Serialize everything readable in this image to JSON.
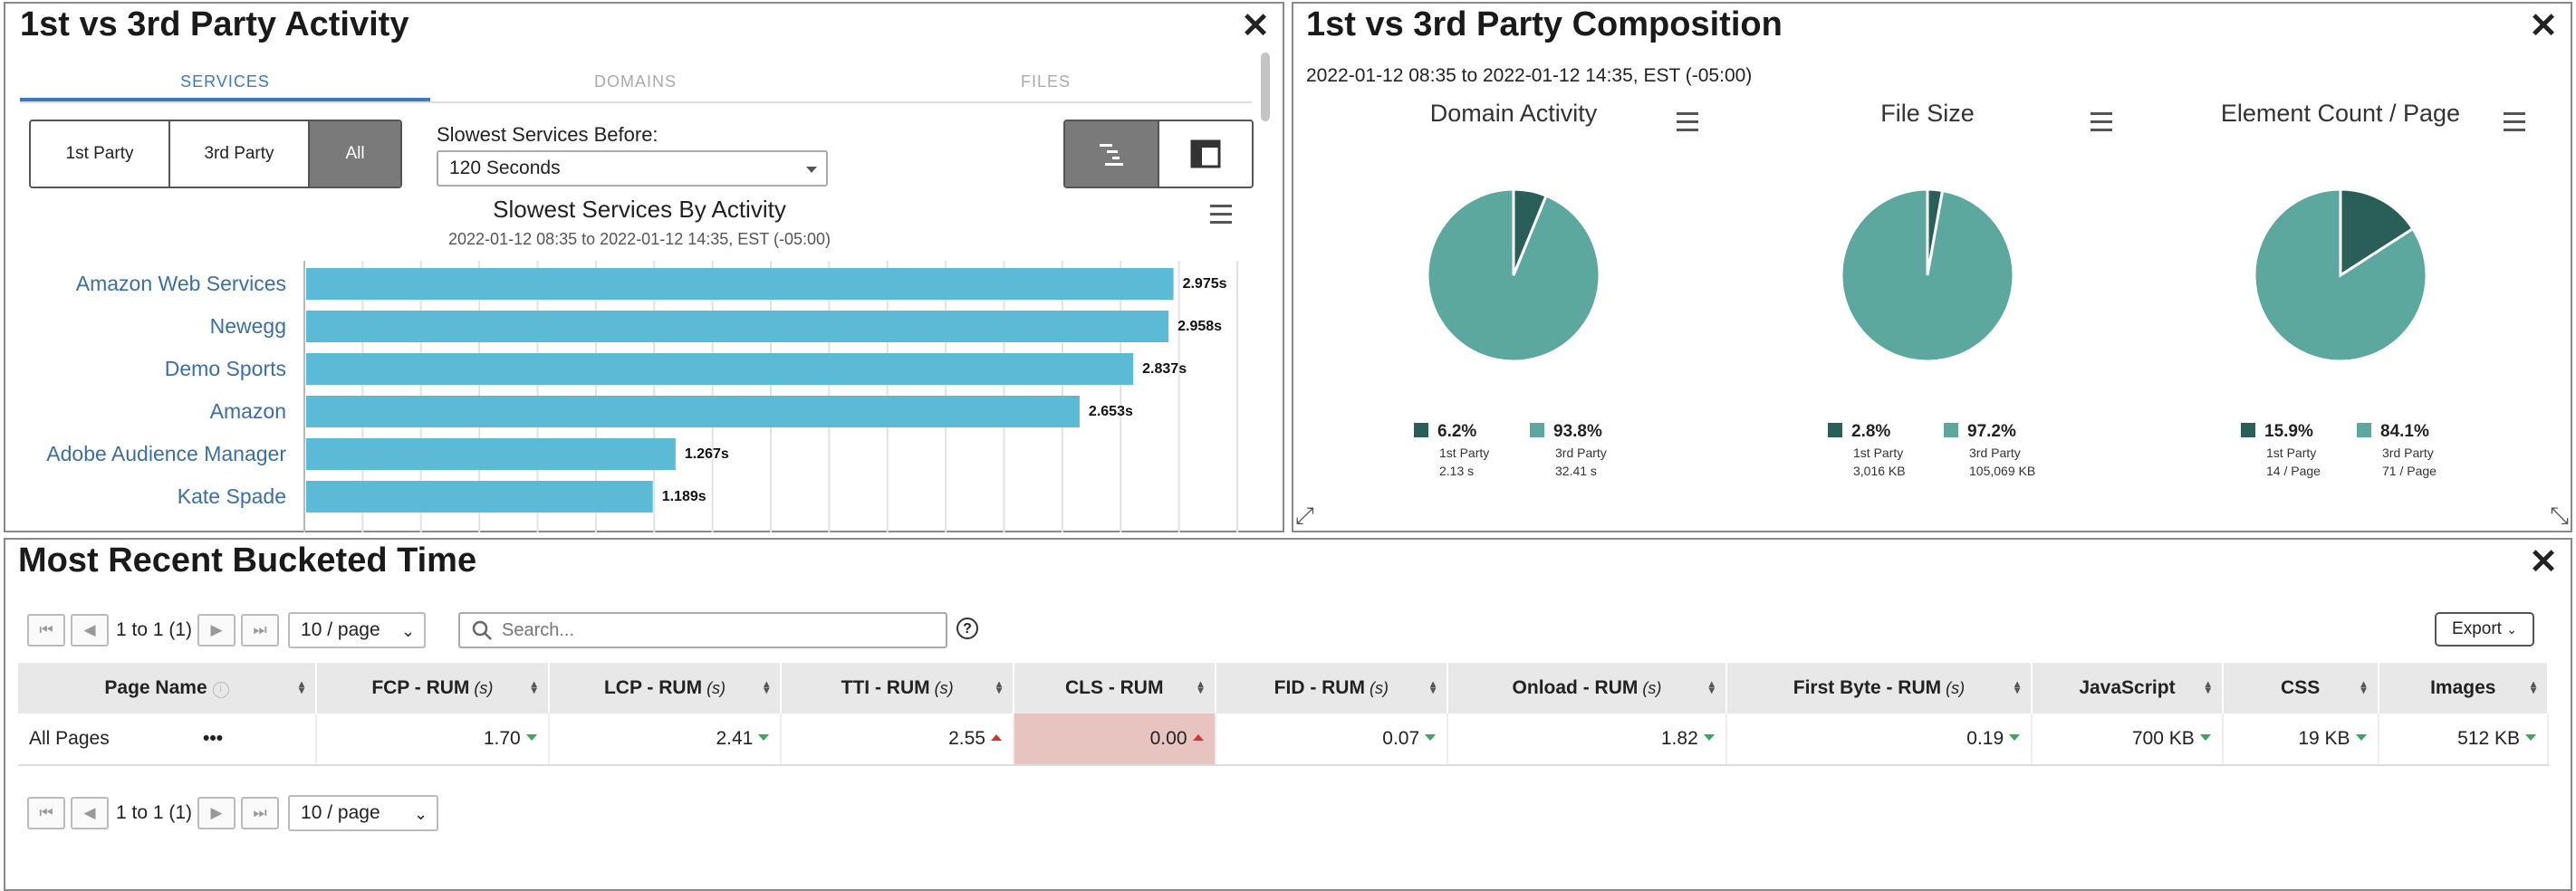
{
  "activity_panel": {
    "title": "1st vs 3rd Party Activity",
    "tabs": [
      "SERVICES",
      "DOMAINS",
      "FILES"
    ],
    "active_tab": "SERVICES",
    "party_filter": [
      "1st Party",
      "3rd Party",
      "All"
    ],
    "party_selected": "All",
    "before_label": "Slowest Services Before:",
    "before_value": "120 Seconds",
    "chart_title": "Slowest Services By Activity",
    "chart_subtitle": "2022-01-12 08:35 to 2022-01-12 14:35, EST (-05:00)"
  },
  "chart_data": [
    {
      "type": "bar",
      "orientation": "horizontal",
      "title": "Slowest Services By Activity",
      "subtitle": "2022-01-12 08:35 to 2022-01-12 14:35, EST (-05:00)",
      "categories": [
        "Amazon Web Services",
        "Newegg",
        "Demo Sports",
        "Amazon",
        "Adobe Audience Manager",
        "Kate Spade"
      ],
      "values": [
        2.975,
        2.958,
        2.837,
        2.653,
        1.267,
        1.189
      ],
      "value_labels": [
        "2.975s",
        "2.958s",
        "2.837s",
        "2.653s",
        "1.267s",
        "1.189s"
      ],
      "xlim": [
        0,
        3.2
      ],
      "grid": true,
      "color": "#5bbad5"
    },
    {
      "type": "pie",
      "title": "Domain Activity",
      "labels": [
        "1st Party",
        "3rd Party"
      ],
      "values": [
        6.2,
        93.8
      ],
      "value_labels": [
        "6.2%",
        "93.8%"
      ],
      "details": [
        "2.13 s",
        "32.41 s"
      ],
      "colors": [
        "#2a5e58",
        "#5ca89e"
      ]
    },
    {
      "type": "pie",
      "title": "File Size",
      "labels": [
        "1st Party",
        "3rd Party"
      ],
      "values": [
        2.8,
        97.2
      ],
      "value_labels": [
        "2.8%",
        "97.2%"
      ],
      "details": [
        "3,016 KB",
        "105,069 KB"
      ],
      "colors": [
        "#2a5e58",
        "#5ca89e"
      ]
    },
    {
      "type": "pie",
      "title": "Element Count / Page",
      "labels": [
        "1st Party",
        "3rd Party"
      ],
      "values": [
        15.9,
        84.1
      ],
      "value_labels": [
        "15.9%",
        "84.1%"
      ],
      "details": [
        "14 / Page",
        "71 / Page"
      ],
      "colors": [
        "#2a5e58",
        "#5ca89e"
      ]
    }
  ],
  "composition_panel": {
    "title": "1st vs 3rd Party Composition",
    "date_range": "2022-01-12 08:35 to 2022-01-12 14:35, EST (-05:00)"
  },
  "bucketed_panel": {
    "title": "Most Recent Bucketed Time",
    "pager_text": "1 to 1 (1)",
    "page_size": "10 / page",
    "search_placeholder": "Search...",
    "export_label": "Export",
    "columns": [
      {
        "label": "Page Name",
        "unit": ""
      },
      {
        "label": "FCP - RUM",
        "unit": "(s)"
      },
      {
        "label": "LCP - RUM",
        "unit": "(s)"
      },
      {
        "label": "TTI - RUM",
        "unit": "(s)"
      },
      {
        "label": "CLS - RUM",
        "unit": ""
      },
      {
        "label": "FID - RUM",
        "unit": "(s)"
      },
      {
        "label": "Onload - RUM",
        "unit": "(s)"
      },
      {
        "label": "First Byte - RUM",
        "unit": "(s)"
      },
      {
        "label": "JavaScript",
        "unit": ""
      },
      {
        "label": "CSS",
        "unit": ""
      },
      {
        "label": "Images",
        "unit": ""
      }
    ],
    "rows": [
      {
        "page_name": "All Pages",
        "menu": "•••",
        "cells": [
          "1.70",
          "2.41",
          "2.55",
          "0.00",
          "0.07",
          "1.82",
          "0.19",
          "700 KB",
          "19 KB",
          "512 KB"
        ],
        "trends": [
          "down-good",
          "down-good",
          "up-bad",
          "up-bad",
          "down-good",
          "down-good",
          "down-good",
          "down-good",
          "down-good",
          "down-good"
        ]
      }
    ]
  },
  "colors": {
    "bar": "#5bbad5",
    "first_party": "#2a5e58",
    "third_party": "#5ca89e",
    "link": "#3a6ea5",
    "tab_active": "#3a7bbd",
    "cls_warning_bg": "#e8c4c0"
  },
  "icons": [
    "close-icon",
    "hamburger-menu-icon",
    "resize-icon",
    "search-icon",
    "help-icon",
    "sort-icon",
    "gantt-view-icon",
    "layout-view-icon"
  ]
}
